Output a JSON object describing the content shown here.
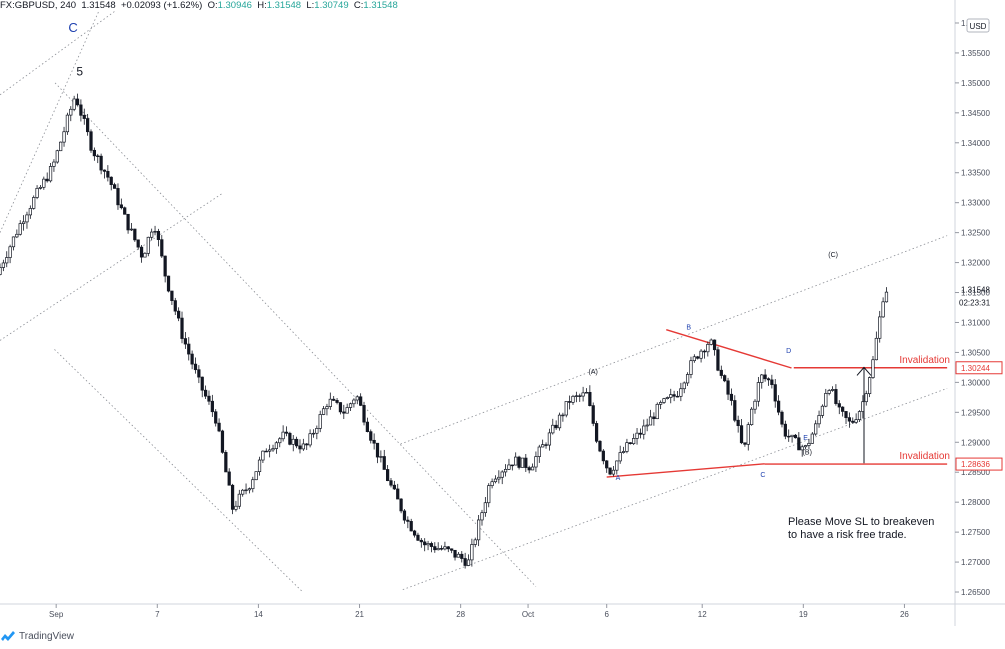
{
  "header": {
    "symbol": "FX:GBPUSD, 240",
    "last": "1.31548",
    "change": "+0.02093 (+1.62%)",
    "o_label": "O:",
    "o": "1.30946",
    "h_label": "H:",
    "h": "1.31548",
    "l_label": "L:",
    "l": "1.30749",
    "c_label": "C:",
    "c": "1.31548"
  },
  "footer": {
    "brand": "TradingView",
    "logo_icon": "tradingview-logo-icon"
  },
  "colors": {
    "candle": "#131722",
    "red": "#e53935",
    "wave": "#1e40af",
    "invalidation": "#e53935",
    "axis": "#4a4f5c"
  },
  "chart_data": {
    "type": "candlestick",
    "symbol": "GBPUSD",
    "timeframe": "240",
    "currency": "USD",
    "ylim": [
      1.263,
      1.3615
    ],
    "y_ticks": [
      "1.36000",
      "1.35500",
      "1.35000",
      "1.34500",
      "1.34000",
      "1.33500",
      "1.33000",
      "1.32500",
      "1.32000",
      "1.31500",
      "1.31000",
      "1.30500",
      "1.30000",
      "1.29500",
      "1.29000",
      "1.28500",
      "1.28000",
      "1.27500",
      "1.27000",
      "1.26500"
    ],
    "x_ticks": [
      {
        "label": "Sep",
        "t": 10
      },
      {
        "label": "7",
        "t": 28
      },
      {
        "label": "14",
        "t": 46
      },
      {
        "label": "21",
        "t": 64
      },
      {
        "label": "28",
        "t": 82
      },
      {
        "label": "Oct",
        "t": 94
      },
      {
        "label": "6",
        "t": 108
      },
      {
        "label": "12",
        "t": 125
      },
      {
        "label": "19",
        "t": 143
      },
      {
        "label": "26",
        "t": 161
      }
    ],
    "price_labels": [
      {
        "value": 1.31548,
        "text": "1.31548",
        "style": "current"
      },
      {
        "value": 1.30244,
        "text": "1.30244",
        "style": "red"
      },
      {
        "value": 1.28636,
        "text": "1.28636",
        "style": "red"
      }
    ],
    "countdown": "02:23:31",
    "anchors": [
      [
        0,
        1.318
      ],
      [
        5,
        1.328
      ],
      [
        10,
        1.336
      ],
      [
        14,
        1.348
      ],
      [
        17,
        1.339
      ],
      [
        20,
        1.334
      ],
      [
        23,
        1.327
      ],
      [
        26,
        1.321
      ],
      [
        28,
        1.327
      ],
      [
        30,
        1.318
      ],
      [
        33,
        1.308
      ],
      [
        36,
        1.3
      ],
      [
        39,
        1.294
      ],
      [
        42,
        1.279
      ],
      [
        45,
        1.283
      ],
      [
        48,
        1.289
      ],
      [
        51,
        1.291
      ],
      [
        55,
        1.289
      ],
      [
        59,
        1.297
      ],
      [
        62,
        1.295
      ],
      [
        64,
        1.298
      ],
      [
        67,
        1.29
      ],
      [
        70,
        1.283
      ],
      [
        73,
        1.277
      ],
      [
        76,
        1.273
      ],
      [
        80,
        1.272
      ],
      [
        84,
        1.27
      ],
      [
        86,
        1.277
      ],
      [
        88,
        1.284
      ],
      [
        92,
        1.287
      ],
      [
        95,
        1.286
      ],
      [
        99,
        1.292
      ],
      [
        102,
        1.297
      ],
      [
        105,
        1.298
      ],
      [
        107,
        1.29
      ],
      [
        109,
        1.285
      ],
      [
        112,
        1.289
      ],
      [
        115,
        1.292
      ],
      [
        118,
        1.296
      ],
      [
        121,
        1.298
      ],
      [
        123,
        1.302
      ],
      [
        125,
        1.305
      ],
      [
        127,
        1.307
      ],
      [
        129,
        1.301
      ],
      [
        131,
        1.296
      ],
      [
        133,
        1.288
      ],
      [
        134,
        1.294
      ],
      [
        136,
        1.301
      ],
      [
        138,
        1.3
      ],
      [
        140,
        1.292
      ],
      [
        142,
        1.29
      ],
      [
        144,
        1.289
      ],
      [
        146,
        1.293
      ],
      [
        148,
        1.3
      ],
      [
        150,
        1.295
      ],
      [
        152,
        1.293
      ],
      [
        154,
        1.296
      ],
      [
        156,
        1.3035
      ],
      [
        158,
        1.3155
      ]
    ],
    "labels": [
      {
        "text": "C",
        "t": 13,
        "v": 1.3585,
        "color": "wave",
        "size": 13
      },
      {
        "text": "5",
        "t": 14.2,
        "v": 1.3512,
        "color": "dark",
        "size": 12
      },
      {
        "text": "(A)",
        "t": 105.6,
        "v": 1.3014,
        "color": "dark",
        "size": 7
      },
      {
        "text": "A",
        "t": 110,
        "v": 1.2837,
        "color": "wave",
        "size": 7
      },
      {
        "text": "B",
        "t": 122.6,
        "v": 1.3088,
        "color": "wave",
        "size": 7
      },
      {
        "text": "C",
        "t": 135.8,
        "v": 1.2842,
        "color": "wave",
        "size": 7
      },
      {
        "text": "D",
        "t": 140.4,
        "v": 1.3049,
        "color": "wave",
        "size": 7
      },
      {
        "text": "E",
        "t": 143.4,
        "v": 1.2904,
        "color": "wave",
        "size": 7
      },
      {
        "text": "(B)",
        "t": 143.7,
        "v": 1.288,
        "color": "dark",
        "size": 7
      },
      {
        "text": "(C)",
        "t": 148.3,
        "v": 1.3209,
        "color": "dark",
        "size": 7
      }
    ],
    "invalidation_lines": [
      {
        "label": "Invalidation",
        "value": 1.30244
      },
      {
        "label": "Invalidation",
        "value": 1.28636
      }
    ],
    "annotation": [
      "Please Move SL to breakeven",
      "to have a risk free trade."
    ],
    "trendlines": [
      {
        "style": "dotted",
        "from": [
          0,
          1.307
        ],
        "to": [
          39.5,
          1.3315
        ]
      },
      {
        "style": "dotted",
        "from": [
          0,
          1.348
        ],
        "to": [
          20.5,
          1.362
        ]
      },
      {
        "style": "dotted",
        "from": [
          0,
          1.325
        ],
        "to": [
          17.6,
          1.362
        ]
      },
      {
        "style": "dotted",
        "from": [
          9.8,
          1.35
        ],
        "to": [
          95.4,
          1.2659
        ]
      },
      {
        "style": "dotted",
        "from": [
          9.7,
          1.3055
        ],
        "to": [
          53.9,
          1.265
        ]
      },
      {
        "style": "dotted",
        "from": [
          71.3,
          1.2897
        ],
        "to": [
          168.6,
          1.3245
        ]
      },
      {
        "style": "dotted",
        "from": [
          71.7,
          1.2654
        ],
        "to": [
          168.6,
          1.299
        ]
      },
      {
        "style": "solid-red",
        "from": [
          108,
          1.2842
        ],
        "to": [
          136.1,
          1.2864
        ]
      },
      {
        "style": "solid-red",
        "from": [
          118.6,
          1.3088
        ],
        "to": [
          140.9,
          1.3024
        ]
      },
      {
        "style": "solid-red",
        "from": [
          141.3,
          1.30244
        ],
        "to": [
          168.6,
          1.30244
        ]
      },
      {
        "style": "solid-red",
        "from": [
          136.1,
          1.28636
        ],
        "to": [
          168.6,
          1.28636
        ]
      }
    ],
    "arrow": {
      "t": 153.8,
      "from": 1.2865,
      "to": 1.3025
    }
  }
}
